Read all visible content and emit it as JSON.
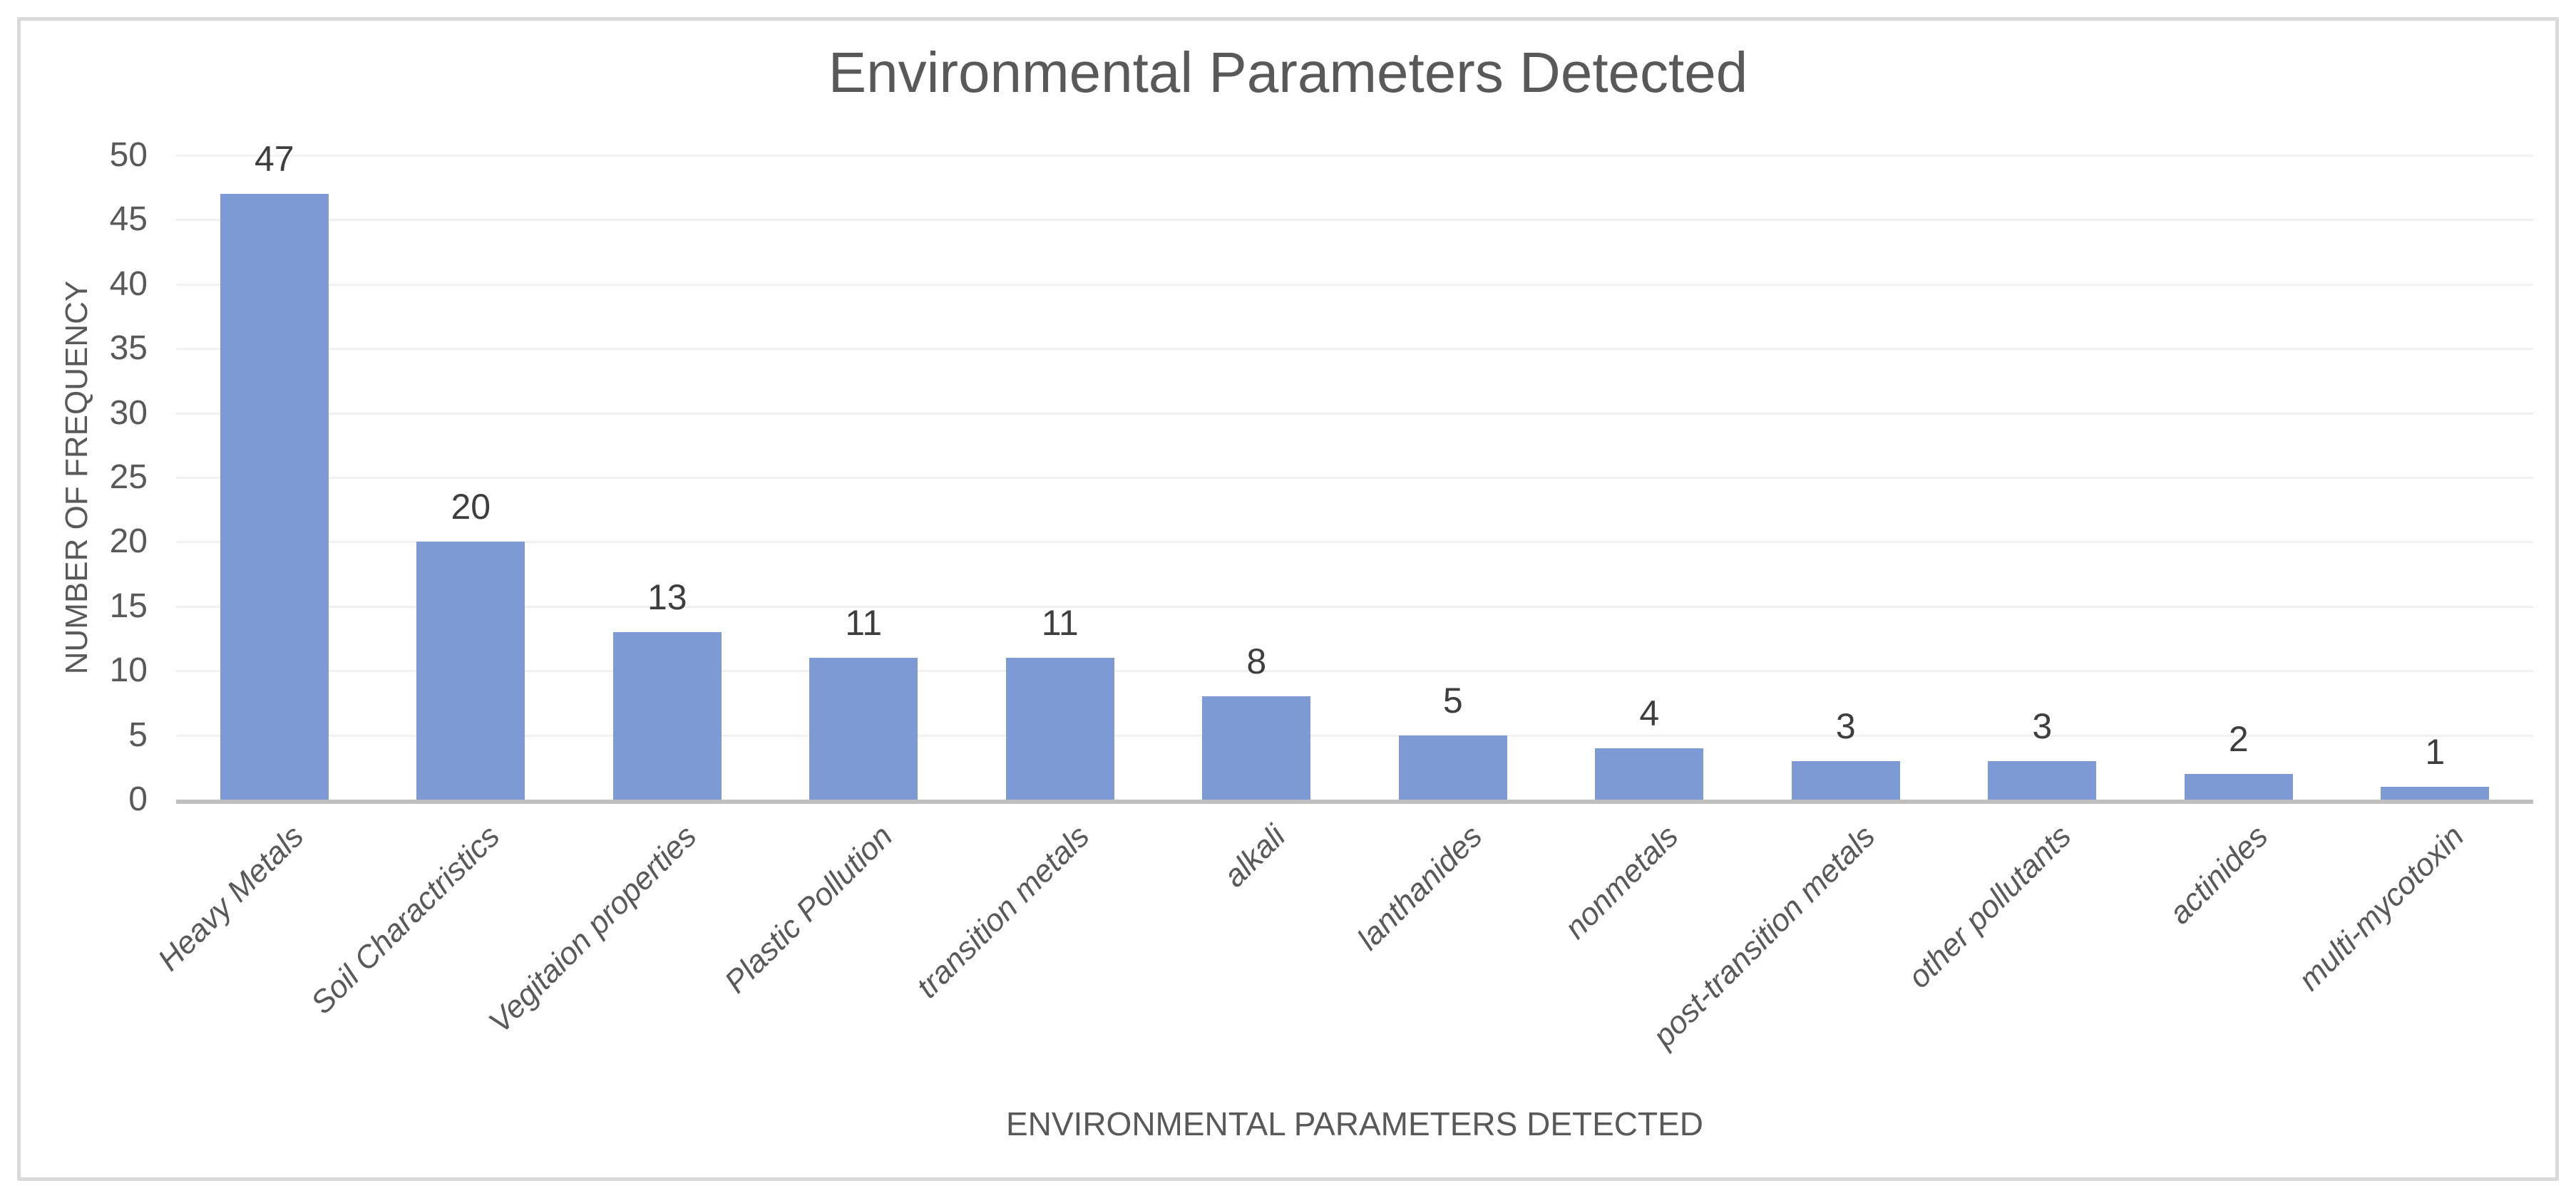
{
  "chart": {
    "title": "Environmental Parameters Detected",
    "y_axis_title": "NUMBER OF FREQUENCY",
    "x_axis_title": "ENVIRONMENTAL PARAMETERS DETECTED"
  },
  "chart_data": {
    "type": "bar",
    "title": "Environmental Parameters Detected",
    "xlabel": "ENVIRONMENTAL PARAMETERS DETECTED",
    "ylabel": "NUMBER OF FREQUENCY",
    "categories": [
      "Heavy Metals",
      "Soil Charactristics",
      "Vegitaion properties",
      "Plastic Pollution",
      "transition metals",
      "alkali",
      "lanthanides",
      "nonmetals",
      "post-transition metals",
      "other pollutants",
      "actinides",
      "multi-mycotoxin"
    ],
    "values": [
      47,
      20,
      13,
      11,
      11,
      8,
      5,
      4,
      3,
      3,
      2,
      1
    ],
    "data_labels": [
      47,
      20,
      13,
      11,
      11,
      8,
      5,
      4,
      3,
      3,
      2,
      1
    ],
    "ylim": [
      0,
      50
    ],
    "yticks": [
      0,
      5,
      10,
      15,
      20,
      25,
      30,
      35,
      40,
      45,
      50
    ],
    "grid": "horizontal",
    "legend": "none"
  },
  "colors": {
    "bar": "#7D9AD5",
    "gridline": "#F1F1F1",
    "axis_line": "#BFBFBF",
    "card_border": "#DADADA",
    "title_text": "#595959",
    "axis_text": "#595959",
    "data_label_text": "#3E3E3E"
  }
}
